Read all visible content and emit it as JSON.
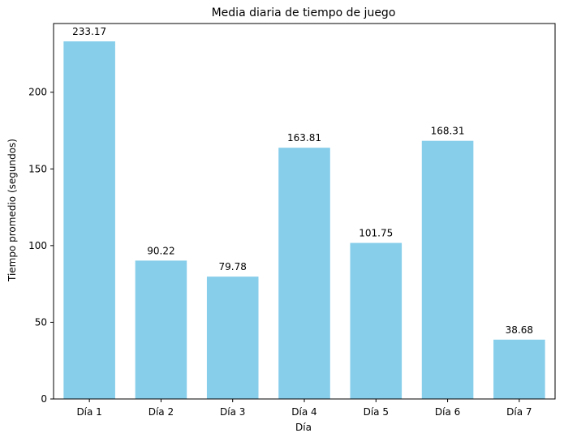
{
  "colors": {
    "bar": "#87ceeb",
    "axis": "#000000",
    "background": "#ffffff"
  },
  "chart_data": {
    "type": "bar",
    "title": "Media diaria de tiempo de juego",
    "xlabel": "Día",
    "ylabel": "Tiempo promedio (segundos)",
    "categories": [
      "Día 1",
      "Día 2",
      "Día 3",
      "Día 4",
      "Día 5",
      "Día 6",
      "Día 7"
    ],
    "values": [
      233.17,
      90.22,
      79.78,
      163.81,
      101.75,
      168.31,
      38.68
    ],
    "data_labels": [
      "233.17",
      "90.22",
      "79.78",
      "163.81",
      "101.75",
      "168.31",
      "38.68"
    ],
    "ylim": [
      0,
      244.8
    ],
    "yticks": [
      0,
      50,
      100,
      150,
      200
    ],
    "grid": false,
    "legend": "none"
  }
}
